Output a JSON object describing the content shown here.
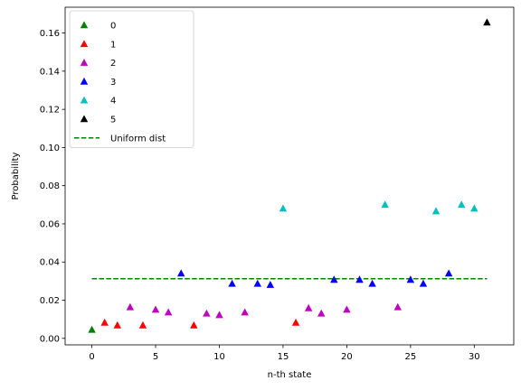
{
  "chart_data": {
    "type": "scatter",
    "title": "",
    "xlabel": "n-th state",
    "ylabel": "Probability",
    "xlim": [
      -2.1,
      33.1
    ],
    "ylim": [
      -0.0034,
      0.1735
    ],
    "xticks": [
      0,
      5,
      10,
      15,
      20,
      25,
      30
    ],
    "yticks": [
      0.0,
      0.02,
      0.04,
      0.06,
      0.08,
      0.1,
      0.12,
      0.14,
      0.16
    ],
    "ytick_labels": [
      "0.00",
      "0.02",
      "0.04",
      "0.06",
      "0.08",
      "0.10",
      "0.12",
      "0.14",
      "0.16"
    ],
    "grid": false,
    "legend_position": "upper-left",
    "marker": "triangle-up",
    "series": [
      {
        "name": "0",
        "color": "#008000",
        "points": [
          [
            0,
            0.0045
          ]
        ]
      },
      {
        "name": "1",
        "color": "#ff0000",
        "points": [
          [
            1,
            0.0082
          ],
          [
            2,
            0.0068
          ],
          [
            4,
            0.0068
          ],
          [
            8,
            0.0068
          ],
          [
            16,
            0.0082
          ]
        ]
      },
      {
        "name": "2",
        "color": "#bf00bf",
        "points": [
          [
            3,
            0.0163
          ],
          [
            5,
            0.015
          ],
          [
            6,
            0.0136
          ],
          [
            9,
            0.013
          ],
          [
            10,
            0.0122
          ],
          [
            12,
            0.0136
          ],
          [
            17,
            0.0158
          ],
          [
            18,
            0.013
          ],
          [
            20,
            0.015
          ],
          [
            24,
            0.0163
          ]
        ]
      },
      {
        "name": "3",
        "color": "#0000ff",
        "points": [
          [
            7,
            0.034
          ],
          [
            11,
            0.0286
          ],
          [
            13,
            0.0286
          ],
          [
            14,
            0.028
          ],
          [
            19,
            0.0307
          ],
          [
            21,
            0.0307
          ],
          [
            22,
            0.0286
          ],
          [
            25,
            0.0307
          ],
          [
            26,
            0.0286
          ],
          [
            28,
            0.034
          ]
        ]
      },
      {
        "name": "4",
        "color": "#00bfbf",
        "points": [
          [
            15,
            0.068
          ],
          [
            23,
            0.07
          ],
          [
            27,
            0.0666
          ],
          [
            29,
            0.07
          ],
          [
            30,
            0.068
          ]
        ]
      },
      {
        "name": "5",
        "color": "#000000",
        "points": [
          [
            31,
            0.1655
          ]
        ]
      }
    ],
    "reference_line": {
      "name": "Uniform dist",
      "color": "#008000",
      "style": "dashed",
      "y": 0.03125,
      "x_range": [
        0,
        31
      ]
    }
  }
}
